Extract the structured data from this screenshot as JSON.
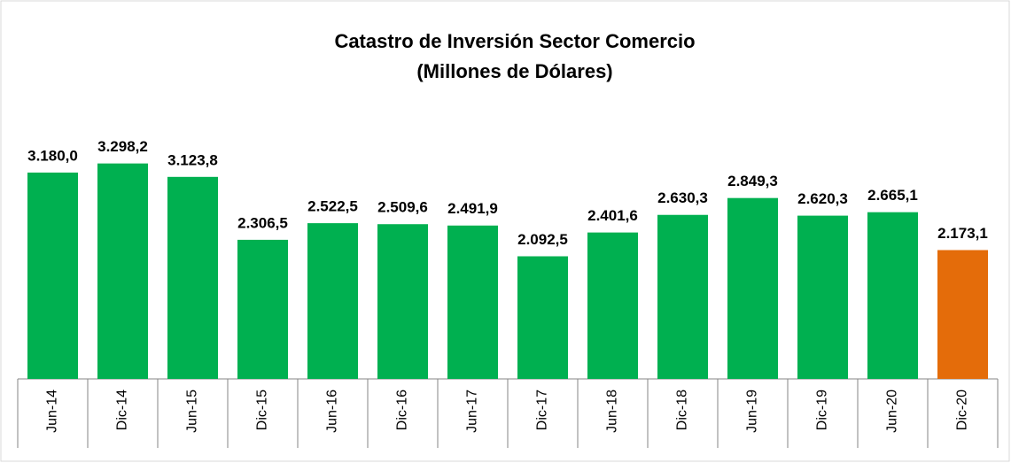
{
  "chart_data": {
    "type": "bar",
    "title": "Catastro de Inversión Sector Comercio",
    "subtitle": "(Millones de Dólares)",
    "categories": [
      "Jun-14",
      "Dic-14",
      "Jun-15",
      "Dic-15",
      "Jun-16",
      "Dic-16",
      "Jun-17",
      "Dic-17",
      "Jun-18",
      "Dic-18",
      "Jun-19",
      "Dic-19",
      "Jun-20",
      "Dic-20"
    ],
    "values": [
      3180.0,
      3298.2,
      3123.8,
      2306.5,
      2522.5,
      2509.6,
      2491.9,
      2092.5,
      2401.6,
      2630.3,
      2849.3,
      2620.3,
      2665.1,
      2173.1
    ],
    "value_labels": [
      "3.180,0",
      "3.298,2",
      "3.123,8",
      "2.306,5",
      "2.522,5",
      "2.509,6",
      "2.491,9",
      "2.092,5",
      "2.401,6",
      "2.630,3",
      "2.849,3",
      "2.620,3",
      "2.665,1",
      "2.173,1"
    ],
    "colors": [
      "#00b050",
      "#00b050",
      "#00b050",
      "#00b050",
      "#00b050",
      "#00b050",
      "#00b050",
      "#00b050",
      "#00b050",
      "#00b050",
      "#00b050",
      "#00b050",
      "#00b050",
      "#e46c0a"
    ],
    "ylim": [
      500,
      3800
    ]
  }
}
